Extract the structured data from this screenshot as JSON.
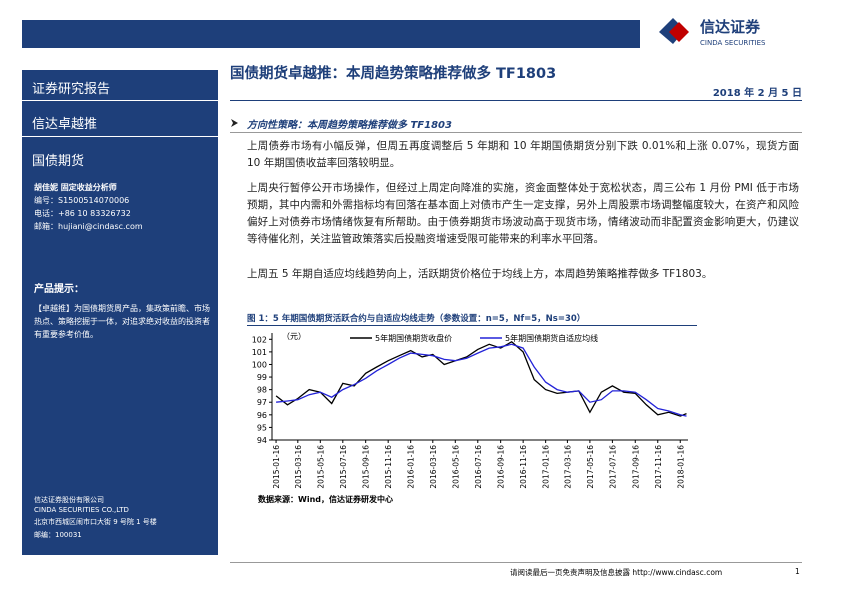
{
  "header": {
    "logo_cn": "信达证券",
    "logo_en": "CINDA SECURITIES"
  },
  "sidebar": {
    "report_type": "证券研究报告",
    "product": "信达卓越推",
    "category": "国债期货",
    "analyst": "胡佳妮  固定收益分析师",
    "id": "编号：S1500514070006",
    "phone": "电话：+86 10 83326732",
    "email": "邮箱：hujiani@cindasc.com",
    "tip_title": "产品提示：",
    "tip_text": "【卓越推】为国债期货周产品，集政策前瞻、市场热点、策略挖掘于一体，对追求绝对收益的投资者有重要参考价值。",
    "company_cn": "信达证券股份有限公司",
    "company_en": "CINDA SECURITIES CO.,LTD",
    "address": "北京市西城区闹市口大街 9 号院 1 号楼",
    "postcode": "邮编：100031"
  },
  "main": {
    "title": "国债期货卓越推：本周趋势策略推荐做多 TF1803",
    "date": "2018 年 2 月 5 日",
    "section_heading": "方向性策略：本周趋势策略推荐做多 TF1803",
    "paragraphs": [
      "上周债券市场有小幅反弹，但周五再度调整后 5 年期和 10 年期国债期货分别下跌 0.01%和上涨 0.07%，现货方面 10 年期国债收益率回落较明显。",
      "上周央行暂停公开市场操作，但经过上周定向降准的实施，资金面整体处于宽松状态，周三公布 1 月份 PMI 低于市场预期，其中内需和外需指标均有回落在基本面上对债市产生一定支撑，另外上周股票市场调整幅度较大，在资产和风险偏好上对债券市场情绪恢复有所帮助。由于债券期货市场波动高于现货市场，情绪波动而非配置资金影响更大，仍建议等待催化剂，关注监管政策落实后投融资增速受限可能带来的利率水平回落。",
      "上周五 5 年期自适应均线趋势向上，活跃期货价格位于均线上方，本周趋势策略推荐做多 TF1803。"
    ],
    "caption": "图 1：5 年期国债期货活跃合约与自适应均线走势（参数设置：n=5，Nf=5，Ns=30）",
    "source": "数据来源：Wind，信达证券研发中心"
  },
  "footer": {
    "disclaimer": "请阅读最后一页免责声明及信息披露 http://www.cindasc.com",
    "page": "1"
  },
  "chart_data": {
    "type": "line",
    "y_label": "（元）",
    "x": [
      "2015-01-16",
      "2015-02-16",
      "2015-03-16",
      "2015-04-16",
      "2015-05-16",
      "2015-06-16",
      "2015-07-16",
      "2015-08-16",
      "2015-09-16",
      "2015-10-16",
      "2015-11-16",
      "2015-12-16",
      "2016-01-16",
      "2016-02-16",
      "2016-03-16",
      "2016-04-16",
      "2016-05-16",
      "2016-06-16",
      "2016-07-16",
      "2016-08-16",
      "2016-09-16",
      "2016-10-16",
      "2016-11-16",
      "2016-12-16",
      "2017-01-16",
      "2017-02-16",
      "2017-03-16",
      "2017-04-16",
      "2017-05-16",
      "2017-06-16",
      "2017-07-16",
      "2017-08-16",
      "2017-09-16",
      "2017-10-16",
      "2017-11-16",
      "2017-12-16",
      "2018-01-16",
      "2018-02-02"
    ],
    "series": [
      {
        "name": "5年期国债期货收盘价",
        "color": "#000000",
        "values": [
          97.5,
          96.8,
          97.3,
          98.0,
          97.8,
          96.9,
          98.5,
          98.3,
          99.3,
          99.8,
          100.3,
          100.7,
          101.1,
          100.6,
          100.8,
          100.0,
          100.3,
          100.6,
          101.2,
          101.6,
          101.3,
          101.8,
          101.0,
          98.8,
          98.0,
          97.7,
          97.8,
          97.9,
          96.2,
          97.8,
          98.3,
          97.8,
          97.7,
          96.8,
          96.0,
          96.2,
          95.9,
          96.1
        ]
      },
      {
        "name": "5年期国债期货自适应均线",
        "color": "#2323d8",
        "values": [
          97.0,
          97.1,
          97.2,
          97.6,
          97.8,
          97.4,
          98.0,
          98.4,
          98.9,
          99.5,
          100.0,
          100.5,
          100.9,
          100.8,
          100.7,
          100.4,
          100.3,
          100.5,
          100.9,
          101.3,
          101.4,
          101.6,
          101.3,
          99.8,
          98.6,
          98.0,
          97.8,
          97.9,
          97.0,
          97.2,
          97.9,
          97.9,
          97.8,
          97.2,
          96.5,
          96.3,
          96.0,
          95.9
        ]
      }
    ],
    "xlim": [
      "2015-01-05",
      "2018-02-06"
    ],
    "xticks": [
      "2015-01-16",
      "2015-03-16",
      "2015-05-16",
      "2015-07-16",
      "2015-09-16",
      "2015-11-16",
      "2016-01-16",
      "2016-03-16",
      "2016-05-16",
      "2016-07-16",
      "2016-09-16",
      "2016-11-16",
      "2017-01-16",
      "2017-03-16",
      "2017-05-16",
      "2017-07-16",
      "2017-09-16",
      "2017-11-16",
      "2018-01-16"
    ],
    "ylim": [
      94,
      102.5
    ],
    "yticks": [
      94,
      95,
      96,
      97,
      98,
      99,
      100,
      101,
      102
    ]
  }
}
